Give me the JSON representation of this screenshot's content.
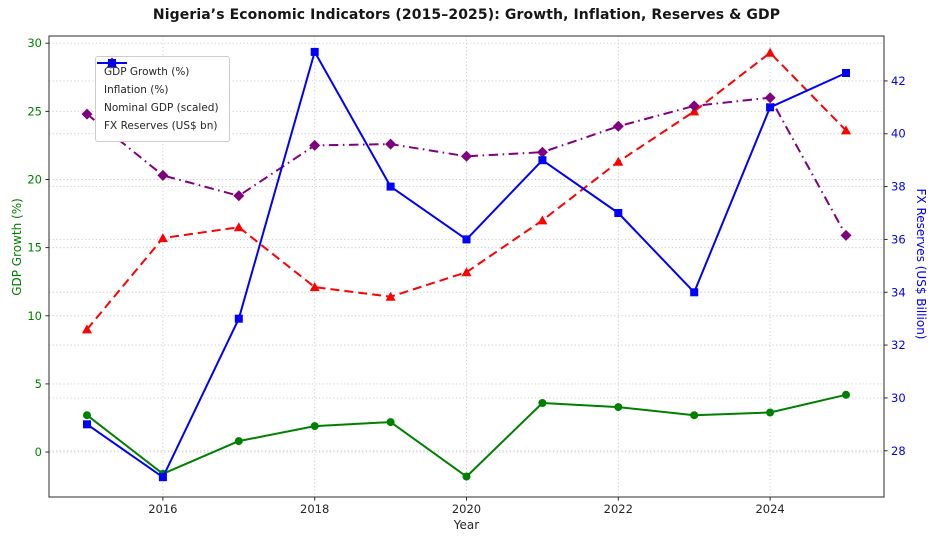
{
  "chart_data": {
    "type": "line",
    "title": "Nigeria’s Economic Indicators (2015–2025): Growth, Inflation, Reserves & GDP",
    "xlabel": "Year",
    "ylabel_left": "GDP Growth (%)",
    "ylabel_right": "FX Reserves (US$ Billion)",
    "grid": true,
    "legend_position": "upper left",
    "x": [
      2015,
      2016,
      2017,
      2018,
      2019,
      2020,
      2021,
      2022,
      2023,
      2024,
      2025
    ],
    "x_ticks": [
      2016,
      2018,
      2020,
      2022,
      2024
    ],
    "y_left_ticks": [
      0,
      5,
      10,
      15,
      20,
      25,
      30
    ],
    "y_right_ticks": [
      28,
      30,
      32,
      34,
      36,
      38,
      40,
      42
    ],
    "xlim": [
      2014.5,
      2025.5
    ],
    "ylim_left": [
      -3.3,
      30.53
    ],
    "ylim_right": [
      26.25,
      43.7
    ],
    "series": [
      {
        "name": "GDP Growth (%)",
        "axis": "left",
        "color": "#008000",
        "line": "solid",
        "marker": "circle",
        "values": [
          2.7,
          -1.6,
          0.8,
          1.9,
          2.2,
          -1.8,
          3.6,
          3.3,
          2.7,
          2.9,
          4.2
        ]
      },
      {
        "name": "Inflation (%)",
        "axis": "left",
        "color": "#ff0000",
        "line": "dashed",
        "marker": "triangle",
        "values": [
          9.0,
          15.7,
          16.5,
          12.1,
          11.4,
          13.2,
          17.0,
          21.3,
          25.0,
          29.3,
          23.6
        ]
      },
      {
        "name": "Nominal GDP (scaled)",
        "axis": "left",
        "color": "#800080",
        "line": "dashdot",
        "marker": "diamond",
        "values": [
          24.8,
          20.3,
          18.8,
          22.5,
          22.6,
          21.7,
          22.0,
          23.9,
          25.4,
          26.0,
          15.9
        ]
      },
      {
        "name": "FX Reserves (US$ bn)",
        "axis": "right",
        "color": "#0000ff",
        "line": "solid",
        "marker": "square",
        "values": [
          29.0,
          27.0,
          33.0,
          43.1,
          38.0,
          36.0,
          39.0,
          37.0,
          34.0,
          41.0,
          42.3
        ]
      }
    ],
    "colors": {
      "grid": "#c9c9c9",
      "spine": "#2b2b2b",
      "left_axis_text": "#008000",
      "right_axis_text": "#0000ff",
      "x_axis_text": "#262626"
    }
  }
}
